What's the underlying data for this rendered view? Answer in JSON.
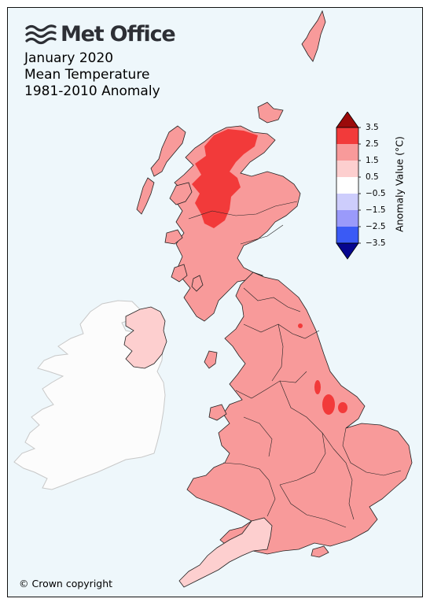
{
  "logo": {
    "text": "Met Office",
    "icon": "met-office-wave-icon"
  },
  "title": {
    "line1": "January 2020",
    "line2": "Mean Temperature",
    "line3": "1981-2010 Anomaly"
  },
  "legend": {
    "title": "Anomaly Value (°C)",
    "ticks": [
      "3.5",
      "2.5",
      "1.5",
      "0.5",
      "−0.5",
      "−1.5",
      "−2.5",
      "−3.5"
    ],
    "colors": {
      "over": "#9b0a0a",
      "b2_5_3_5": "#f23a3a",
      "b1_5_2_5": "#f89a9a",
      "b0_5_1_5": "#fdcfcf",
      "b_neg0_5_0_5": "#ffffff",
      "b_neg1_5_neg0_5": "#cdcdfc",
      "b_neg2_5_neg1_5": "#9a9afa",
      "b_neg3_5_neg2_5": "#3a5af5",
      "under": "#06068f"
    }
  },
  "copyright": "© Crown copyright",
  "regions": {
    "scotland_highlands": "b2_5_3_5",
    "scotland_main": "b1_5_2_5",
    "northern_ireland": "b0_5_1_5",
    "england_wales": "b1_5_2_5",
    "southwest_england": "b0_5_1_5",
    "ireland": "no data"
  }
}
